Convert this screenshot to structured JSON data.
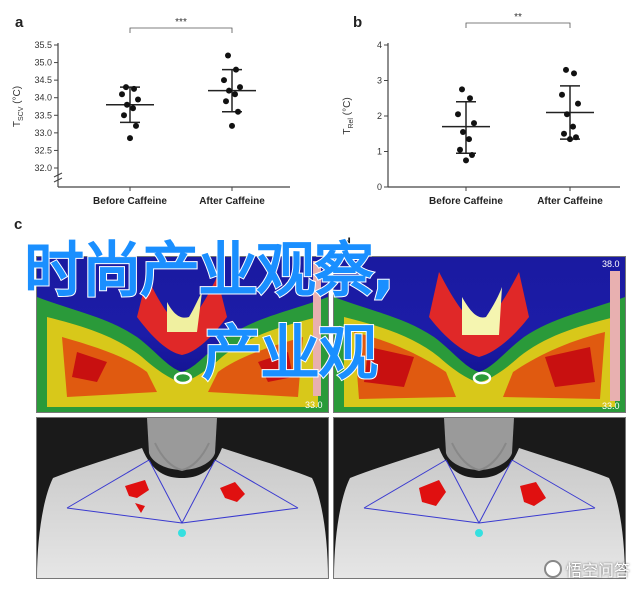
{
  "panels": {
    "a": {
      "label": "a"
    },
    "b": {
      "label": "b"
    },
    "c": {
      "label": "c"
    },
    "d": {
      "label": "d"
    }
  },
  "chart_data": [
    {
      "type": "scatter",
      "title": "",
      "ylabel": "Tscv (°C)",
      "ylabel_main": "T",
      "ylabel_sub": "SCV",
      "ylabel_unit": " (°C)",
      "categories": [
        "Before Caffeine",
        "After Caffeine"
      ],
      "yticks": [
        "32.0",
        "32.5",
        "33.0",
        "33.5",
        "34.0",
        "34.5",
        "35.0",
        "35.5"
      ],
      "ylim": [
        32.0,
        35.5
      ],
      "significance": "***",
      "series": [
        {
          "category": "Before Caffeine",
          "values": [
            34.3,
            34.25,
            34.1,
            33.95,
            33.8,
            33.7,
            33.5,
            33.2,
            32.85
          ],
          "mean": 33.8,
          "sd_low": 33.3,
          "sd_high": 34.3
        },
        {
          "category": "After Caffeine",
          "values": [
            35.2,
            34.8,
            34.5,
            34.3,
            34.2,
            34.1,
            33.9,
            33.6,
            33.2
          ],
          "mean": 34.2,
          "sd_low": 33.6,
          "sd_high": 34.8
        }
      ]
    },
    {
      "type": "scatter",
      "title": "",
      "ylabel": "TRel (°C)",
      "ylabel_main": "T",
      "ylabel_sub": "Rel",
      "ylabel_unit": " (°C)",
      "categories": [
        "Before Caffeine",
        "After Caffeine"
      ],
      "yticks": [
        "0",
        "1",
        "2",
        "3",
        "4"
      ],
      "ylim": [
        0,
        4
      ],
      "significance": "**",
      "series": [
        {
          "category": "Before Caffeine",
          "values": [
            2.75,
            2.5,
            2.05,
            1.8,
            1.55,
            1.35,
            1.05,
            0.9,
            0.75
          ],
          "mean": 1.7,
          "sd_low": 0.95,
          "sd_high": 2.4
        },
        {
          "category": "After Caffeine",
          "values": [
            3.3,
            3.2,
            2.6,
            2.35,
            2.05,
            1.7,
            1.5,
            1.4,
            1.35
          ],
          "mean": 2.1,
          "sd_low": 1.35,
          "sd_high": 2.85
        }
      ]
    }
  ],
  "thermal": {
    "left": {
      "scale_max": "",
      "scale_min": "33.0"
    },
    "right": {
      "scale_max": "38.0",
      "scale_min": "33.0"
    }
  },
  "overlay": {
    "line1": "时尚产业观察,",
    "line2": "产业观"
  },
  "watermark": {
    "text": "悟空问答"
  }
}
